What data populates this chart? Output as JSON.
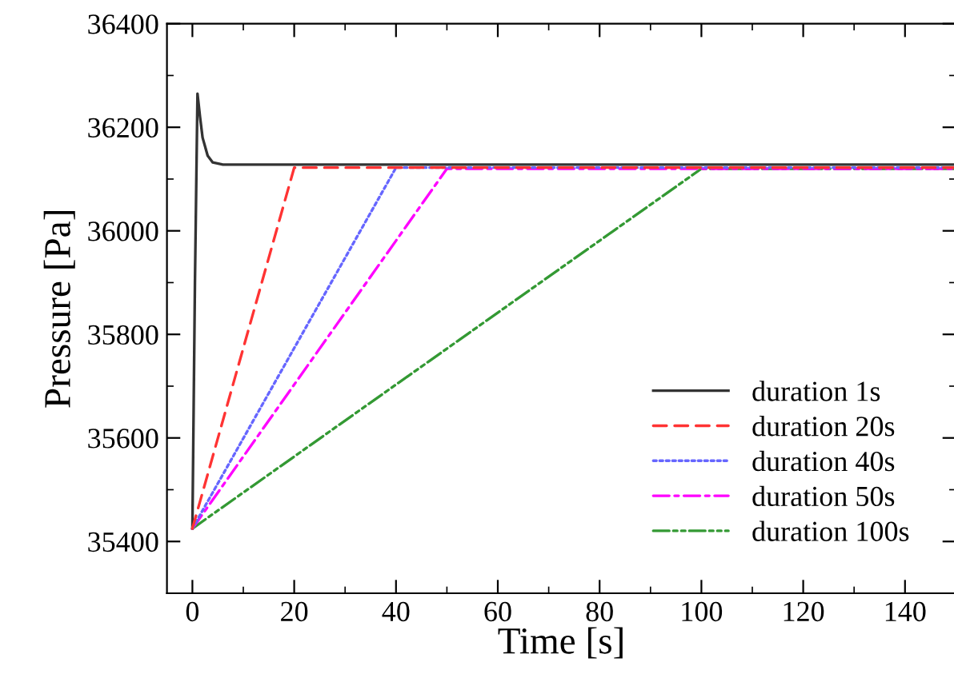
{
  "chart_data": {
    "type": "line",
    "xlabel": "Time [s]",
    "ylabel": "Pressure [Pa]",
    "xlim": [
      -5,
      150
    ],
    "xticks": [
      0,
      20,
      40,
      60,
      80,
      100,
      120,
      140
    ],
    "ylim": [
      35300,
      36400
    ],
    "yticks": [
      35400,
      35600,
      35800,
      36000,
      36200,
      36400
    ],
    "legend": "bottom right",
    "grid": false,
    "series": [
      {
        "name": "duration 1s",
        "color": "#333333",
        "line_style": "solid",
        "x": [
          0,
          0.5,
          1,
          1.5,
          2,
          3,
          4,
          6,
          150
        ],
        "values": [
          35425,
          35900,
          36265,
          36220,
          36180,
          36145,
          36132,
          36128,
          36128
        ]
      },
      {
        "name": "duration 20s",
        "color": "#ff3333",
        "line_style": "dashed",
        "x": [
          0,
          20,
          150
        ],
        "values": [
          35425,
          36122,
          36122
        ]
      },
      {
        "name": "duration 40s",
        "color": "#6666ff",
        "line_style": "dotted",
        "x": [
          0,
          40,
          150
        ],
        "values": [
          35425,
          36122,
          36122
        ]
      },
      {
        "name": "duration 50s",
        "color": "#ff00ff",
        "line_style": "dashdot",
        "x": [
          0,
          50,
          150
        ],
        "values": [
          35425,
          36120,
          36120
        ]
      },
      {
        "name": "duration 100s",
        "color": "#339933",
        "line_style": "dashdotdot",
        "x": [
          0,
          100,
          150
        ],
        "values": [
          35425,
          36120,
          36120
        ]
      }
    ]
  }
}
